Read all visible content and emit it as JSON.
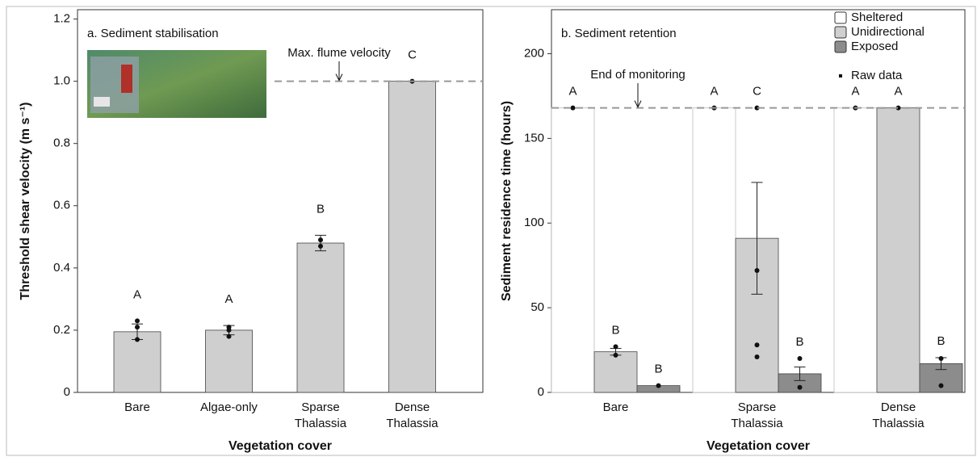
{
  "chart_data": [
    {
      "type": "bar",
      "title": "a. Sediment stabilisation",
      "x_label": "Vegetation cover",
      "y_label": "Threshold shear velocity (m s⁻¹)",
      "categories": [
        "Bare",
        "Algae-only",
        "Sparse Thalassia",
        "Dense Thalassia"
      ],
      "values": [
        0.195,
        0.2,
        0.48,
        1.0
      ],
      "errors": [
        0.025,
        0.015,
        0.025,
        0
      ],
      "raw": [
        [
          0.23,
          0.21,
          0.17
        ],
        [
          0.21,
          0.2,
          0.18
        ],
        [
          0.49,
          0.47
        ],
        [
          1.0
        ]
      ],
      "letters": [
        "A",
        "A",
        "B",
        "C"
      ],
      "color": "#cfcfcf",
      "ylim": [
        0,
        1.23
      ],
      "yticks": [
        0,
        0.2,
        0.4,
        0.6,
        0.8,
        {
          "value": 1,
          "label": "1.0"
        },
        1.2
      ],
      "reference_line": {
        "value": 1,
        "label": "Max. flume velocity"
      }
    },
    {
      "type": "grouped_bar",
      "title": "b. Sediment retention",
      "x_label": "Vegetation cover",
      "y_label": "Sediment residence time (hours)",
      "categories": [
        "Bare",
        "Sparse Thalassia",
        "Dense Thalassia"
      ],
      "series": [
        {
          "name": "Sheltered",
          "color": "#ffffff",
          "values": [
            168,
            168,
            168
          ],
          "errors": [
            0,
            0,
            0
          ],
          "raw": [
            [
              168
            ],
            [
              168
            ],
            [
              168
            ]
          ],
          "letters": [
            "A",
            "A",
            "A"
          ]
        },
        {
          "name": "Unidirectional",
          "color": "#cfcfcf",
          "values": [
            24,
            91,
            168
          ],
          "errors": [
            2,
            33,
            0
          ],
          "raw": [
            [
              27,
              22
            ],
            [
              168,
              72,
              28,
              21
            ],
            [
              168
            ]
          ],
          "letters": [
            "B",
            "C",
            "A"
          ]
        },
        {
          "name": "Exposed",
          "color": "#8c8c8c",
          "values": [
            4,
            11,
            17
          ],
          "errors": [
            0,
            4,
            3.5
          ],
          "raw": [
            [
              4
            ],
            [
              20,
              3
            ],
            [
              20,
              4
            ]
          ],
          "letters": [
            "B",
            "B",
            "B"
          ]
        }
      ],
      "raw_label": "Raw data",
      "legend": "upper right",
      "ylim": [
        0,
        226
      ],
      "yticks": [
        0,
        50,
        100,
        150,
        200
      ],
      "reference_line": {
        "value": 168,
        "label": "End of monitoring"
      }
    }
  ]
}
